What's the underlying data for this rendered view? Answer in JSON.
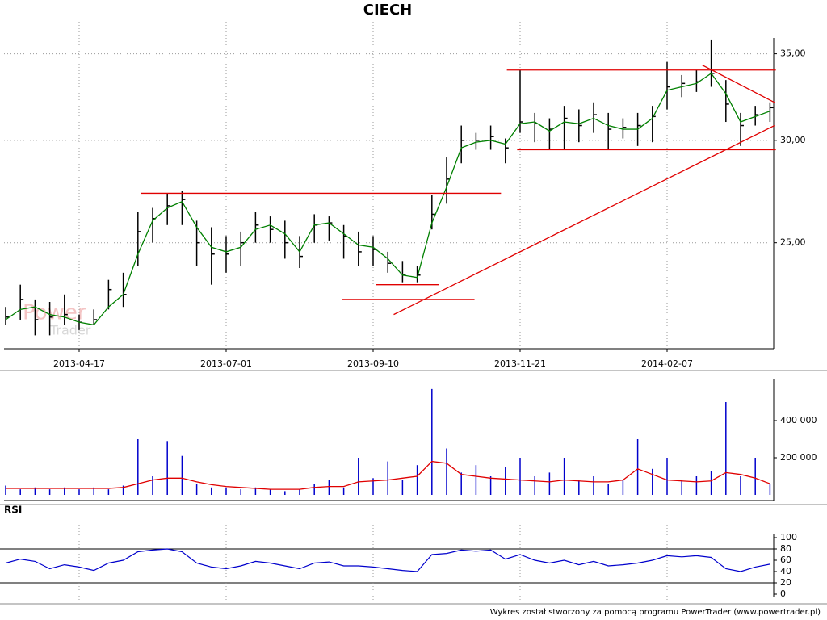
{
  "chart_data": [
    {
      "type": "ohlc",
      "title": "CIECH",
      "log_scale": true,
      "grid": true,
      "color": "#000000",
      "categories": [
        null,
        null,
        null,
        null,
        null,
        "2013-04-17",
        null,
        null,
        null,
        null,
        null,
        null,
        null,
        null,
        null,
        "2013-07-01",
        null,
        null,
        null,
        null,
        null,
        null,
        null,
        null,
        null,
        "2013-09-10",
        null,
        null,
        null,
        null,
        null,
        null,
        null,
        null,
        null,
        "2013-11-21",
        null,
        null,
        null,
        null,
        null,
        null,
        null,
        null,
        null,
        "2014-02-07",
        null,
        null,
        null,
        null,
        null,
        null,
        null
      ],
      "high": [
        22.3,
        23.2,
        22.6,
        22.5,
        22.8,
        22.0,
        22.2,
        23.4,
        23.7,
        26.4,
        26.6,
        27.3,
        27.4,
        26.0,
        25.7,
        25.3,
        25.5,
        26.4,
        26.2,
        26.0,
        25.3,
        26.3,
        26.2,
        25.8,
        25.5,
        25.3,
        24.6,
        24.2,
        24.0,
        27.2,
        29.1,
        30.8,
        30.4,
        30.8,
        30.1,
        34.0,
        31.5,
        31.2,
        31.9,
        31.7,
        32.1,
        31.5,
        31.2,
        31.5,
        31.9,
        34.5,
        33.7,
        34.0,
        35.9,
        33.4,
        31.5,
        31.9,
        32.1
      ],
      "low": [
        21.6,
        21.8,
        21.2,
        21.2,
        21.6,
        21.4,
        21.6,
        22.2,
        22.3,
        24.0,
        25.0,
        25.8,
        25.8,
        24.0,
        23.2,
        23.7,
        24.0,
        25.0,
        25.0,
        24.3,
        23.9,
        25.0,
        25.1,
        24.3,
        24.0,
        24.0,
        23.7,
        23.3,
        23.3,
        25.6,
        26.8,
        28.8,
        29.5,
        29.5,
        28.8,
        30.4,
        29.9,
        29.5,
        29.5,
        29.9,
        30.4,
        29.5,
        30.1,
        29.7,
        29.9,
        31.7,
        32.4,
        32.7,
        33.0,
        31.0,
        29.7,
        30.8,
        31.0
      ],
      "close": [
        21.9,
        22.6,
        21.8,
        21.9,
        22.0,
        21.7,
        21.8,
        23.0,
        22.8,
        25.5,
        26.1,
        26.7,
        27.0,
        25.0,
        24.5,
        24.5,
        25.0,
        25.8,
        25.6,
        25.0,
        24.4,
        25.8,
        25.9,
        25.3,
        24.6,
        24.7,
        24.1,
        23.6,
        23.6,
        26.3,
        28.0,
        30.0,
        30.0,
        30.2,
        29.6,
        31.0,
        30.9,
        30.6,
        31.2,
        30.8,
        31.4,
        30.6,
        30.7,
        30.8,
        31.3,
        33.0,
        33.2,
        33.3,
        33.8,
        32.0,
        30.8,
        31.4,
        31.8
      ],
      "ma": {
        "color": "#008000",
        "values": [
          21.8,
          22.2,
          22.3,
          22.0,
          21.9,
          21.7,
          21.6,
          22.3,
          22.8,
          24.5,
          26.0,
          26.6,
          26.9,
          25.7,
          24.8,
          24.6,
          24.8,
          25.6,
          25.8,
          25.4,
          24.6,
          25.8,
          25.9,
          25.4,
          24.9,
          24.8,
          24.3,
          23.6,
          23.5,
          25.9,
          27.6,
          29.6,
          29.9,
          30.0,
          29.8,
          30.9,
          31.0,
          30.5,
          31.0,
          30.9,
          31.2,
          30.8,
          30.6,
          30.6,
          31.2,
          32.8,
          33.0,
          33.2,
          33.8,
          32.6,
          31.0,
          31.3,
          31.6
        ]
      },
      "ylim": [
        20.7,
        36.0
      ],
      "yticks": [
        {
          "value": 25,
          "label": "25,00"
        },
        {
          "value": 30,
          "label": "30,00"
        },
        {
          "value": 35,
          "label": "35,00"
        }
      ],
      "trendlines": {
        "color": "#e00000",
        "lines": [
          {
            "x": [
              9.2,
              33.7
            ],
            "y": [
              27.3,
              27.3
            ]
          },
          {
            "x": [
              25.2,
              29.5
            ],
            "y": [
              23.2,
              23.2
            ]
          },
          {
            "x": [
              22.9,
              31.9
            ],
            "y": [
              22.6,
              22.6
            ]
          },
          {
            "x": [
              26.4,
              52.3
            ],
            "y": [
              22.0,
              30.8
            ]
          },
          {
            "x": [
              34.1,
              52.4
            ],
            "y": [
              34.0,
              34.0
            ]
          },
          {
            "x": [
              34.8,
              52.4
            ],
            "y": [
              29.5,
              29.5
            ]
          },
          {
            "x": [
              47.4,
              52.3
            ],
            "y": [
              34.3,
              32.1
            ]
          }
        ]
      }
    },
    {
      "type": "bar",
      "color": "#0000cc",
      "values": [
        50000,
        30000,
        40000,
        30000,
        40000,
        30000,
        40000,
        30000,
        50000,
        300000,
        100000,
        290000,
        210000,
        60000,
        40000,
        40000,
        30000,
        40000,
        30000,
        20000,
        30000,
        60000,
        80000,
        40000,
        200000,
        90000,
        180000,
        80000,
        160000,
        570000,
        250000,
        120000,
        160000,
        100000,
        150000,
        200000,
        100000,
        120000,
        200000,
        80000,
        100000,
        60000,
        80000,
        300000,
        140000,
        200000,
        80000,
        100000,
        130000,
        500000,
        100000,
        200000,
        60000
      ],
      "ma": {
        "color": "#e00000",
        "values": [
          35000,
          35000,
          35000,
          35000,
          35000,
          35000,
          35000,
          35000,
          40000,
          60000,
          80000,
          90000,
          90000,
          70000,
          55000,
          45000,
          40000,
          35000,
          30000,
          30000,
          30000,
          40000,
          45000,
          45000,
          70000,
          75000,
          80000,
          90000,
          100000,
          180000,
          170000,
          110000,
          100000,
          90000,
          85000,
          80000,
          75000,
          70000,
          80000,
          75000,
          70000,
          70000,
          80000,
          140000,
          110000,
          80000,
          75000,
          70000,
          75000,
          120000,
          110000,
          90000,
          60000
        ]
      },
      "ylim": [
        0,
        600000
      ],
      "yticks": [
        {
          "value": 200000,
          "label": "200 000"
        },
        {
          "value": 400000,
          "label": "400 000"
        }
      ]
    },
    {
      "type": "line",
      "title": "RSI",
      "color": "#0000cc",
      "values": [
        55,
        62,
        58,
        45,
        52,
        48,
        42,
        55,
        60,
        75,
        78,
        80,
        75,
        55,
        48,
        45,
        50,
        58,
        55,
        50,
        45,
        55,
        57,
        50,
        50,
        48,
        45,
        42,
        40,
        70,
        72,
        78,
        76,
        78,
        62,
        70,
        60,
        55,
        60,
        52,
        58,
        50,
        52,
        55,
        60,
        68,
        66,
        68,
        65,
        45,
        40,
        48,
        53
      ],
      "bands": [
        20,
        80
      ],
      "ylim": [
        0,
        100
      ],
      "yticks": [
        0,
        20,
        40,
        60,
        80,
        100
      ]
    }
  ],
  "watermark": [
    "Power",
    "Trader"
  ],
  "footer": "Wykres został stworzony za pomocą programu PowerTrader (www.powertrader.pl)"
}
